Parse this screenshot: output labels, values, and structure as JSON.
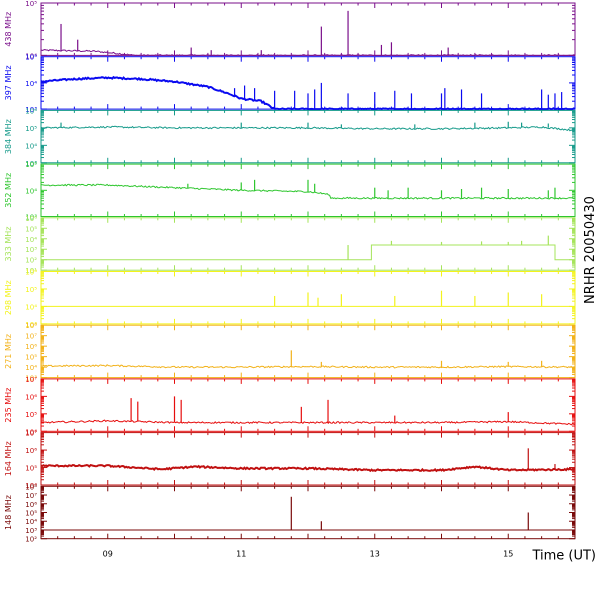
{
  "chart_data": {
    "type": "line",
    "title": "",
    "side_label": "NRHR 20050430",
    "xlabel": "Time (UT)",
    "x_range_hours": [
      8.0,
      16.0
    ],
    "x_ticks": [
      {
        "value": 9,
        "label": "09"
      },
      {
        "value": 11,
        "label": "11"
      },
      {
        "value": 13,
        "label": "13"
      },
      {
        "value": 15,
        "label": "15"
      }
    ],
    "grid": false,
    "log_scale_y": true,
    "panels": [
      {
        "name": "438 MHz",
        "color": "#7a0f8a",
        "ylim_exp": [
          4,
          5
        ],
        "tick_labels": [
          {
            "exp": 4,
            "text": "10⁴"
          },
          {
            "exp": 5,
            "text": "10⁵"
          }
        ],
        "baseline": [
          [
            8.0,
            4.1
          ],
          [
            8.8,
            4.08
          ],
          [
            9.2,
            4.03
          ],
          [
            9.4,
            4.0
          ],
          [
            16.0,
            4.0
          ]
        ],
        "spikes": [
          [
            8.3,
            4.6
          ],
          [
            8.55,
            4.3
          ],
          [
            10.25,
            4.15
          ],
          [
            10.55,
            4.1
          ],
          [
            11.3,
            4.1
          ],
          [
            12.2,
            4.55
          ],
          [
            12.6,
            4.85
          ],
          [
            13.1,
            4.2
          ],
          [
            13.25,
            4.25
          ],
          [
            14.1,
            4.15
          ]
        ]
      },
      {
        "name": "397 MHz",
        "color": "#0a0af0",
        "ylim_exp": [
          3,
          5
        ],
        "tick_labels": [
          {
            "exp": 3,
            "text": "10³"
          },
          {
            "exp": 4,
            "text": "10⁴"
          },
          {
            "exp": 5,
            "text": "10⁵"
          }
        ],
        "baseline": [
          [
            8.0,
            4.05
          ],
          [
            8.5,
            4.15
          ],
          [
            9.0,
            4.2
          ],
          [
            9.5,
            4.15
          ],
          [
            10.0,
            4.05
          ],
          [
            10.5,
            3.85
          ],
          [
            10.8,
            3.6
          ],
          [
            11.0,
            3.4
          ],
          [
            11.3,
            3.3
          ],
          [
            11.5,
            3.0
          ],
          [
            16.0,
            3.0
          ]
        ],
        "spikes": [
          [
            10.9,
            3.8
          ],
          [
            11.05,
            3.9
          ],
          [
            11.2,
            3.8
          ],
          [
            11.5,
            3.7
          ],
          [
            11.8,
            3.7
          ],
          [
            12.0,
            3.6
          ],
          [
            12.1,
            3.75
          ],
          [
            12.2,
            4.0
          ],
          [
            12.6,
            3.6
          ],
          [
            13.0,
            3.65
          ],
          [
            13.3,
            3.7
          ],
          [
            13.55,
            3.6
          ],
          [
            14.0,
            3.6
          ],
          [
            14.05,
            3.8
          ],
          [
            14.3,
            3.75
          ],
          [
            14.6,
            3.6
          ],
          [
            15.5,
            3.75
          ],
          [
            15.6,
            3.55
          ],
          [
            15.7,
            3.6
          ],
          [
            15.8,
            3.65
          ]
        ]
      },
      {
        "name": "384 MHz",
        "color": "#159a8a",
        "ylim_exp": [
          3,
          6
        ],
        "tick_labels": [
          {
            "exp": 3,
            "text": "10³"
          },
          {
            "exp": 4,
            "text": "10⁴"
          },
          {
            "exp": 5,
            "text": "10⁵"
          },
          {
            "exp": 6,
            "text": "10⁶"
          }
        ],
        "baseline": [
          [
            8.0,
            5.0
          ],
          [
            9.0,
            5.05
          ],
          [
            10.0,
            5.0
          ],
          [
            11.0,
            5.0
          ],
          [
            12.0,
            5.0
          ],
          [
            13.0,
            4.95
          ],
          [
            14.0,
            4.95
          ],
          [
            15.0,
            5.0
          ],
          [
            15.5,
            5.05
          ],
          [
            16.0,
            4.85
          ]
        ],
        "spikes": [
          [
            8.3,
            5.3
          ],
          [
            11.0,
            5.3
          ],
          [
            12.0,
            5.3
          ],
          [
            12.5,
            5.2
          ],
          [
            13.6,
            5.2
          ],
          [
            14.5,
            5.3
          ],
          [
            15.0,
            5.35
          ],
          [
            15.2,
            5.3
          ],
          [
            15.6,
            5.25
          ]
        ]
      },
      {
        "name": "352 MHz",
        "color": "#2ec62e",
        "ylim_exp": [
          3,
          5
        ],
        "tick_labels": [
          {
            "exp": 3,
            "text": "10³"
          },
          {
            "exp": 4,
            "text": "10⁴"
          },
          {
            "exp": 5,
            "text": "10⁵"
          }
        ],
        "baseline": [
          [
            8.0,
            4.2
          ],
          [
            9.0,
            4.2
          ],
          [
            10.0,
            4.1
          ],
          [
            11.0,
            4.0
          ],
          [
            12.0,
            3.95
          ],
          [
            12.3,
            3.85
          ],
          [
            12.35,
            3.7
          ],
          [
            16.0,
            3.7
          ]
        ],
        "spikes": [
          [
            10.2,
            4.25
          ],
          [
            11.0,
            4.3
          ],
          [
            11.2,
            4.4
          ],
          [
            12.0,
            4.4
          ],
          [
            12.1,
            4.25
          ],
          [
            13.0,
            4.1
          ],
          [
            13.2,
            4.0
          ],
          [
            13.5,
            4.1
          ],
          [
            14.0,
            4.0
          ],
          [
            14.3,
            4.05
          ],
          [
            14.6,
            4.1
          ],
          [
            15.0,
            4.05
          ],
          [
            15.6,
            4.0
          ],
          [
            15.7,
            4.1
          ]
        ]
      },
      {
        "name": "333 MHz",
        "color": "#a6e45b",
        "ylim_exp": [
          1,
          6
        ],
        "tick_labels": [
          {
            "exp": 1,
            "text": "10¹"
          },
          {
            "exp": 2,
            "text": "10²"
          },
          {
            "exp": 3,
            "text": "10³"
          },
          {
            "exp": 4,
            "text": "10⁴"
          },
          {
            "exp": 5,
            "text": "10⁵"
          },
          {
            "exp": 6,
            "text": "10⁶"
          }
        ],
        "baseline": [
          [
            8.0,
            2.0
          ],
          [
            12.95,
            2.0
          ],
          [
            12.95,
            3.4
          ],
          [
            15.7,
            3.4
          ],
          [
            15.7,
            2.0
          ],
          [
            16.0,
            2.0
          ]
        ],
        "spikes": [
          [
            12.6,
            3.4
          ],
          [
            13.25,
            3.8
          ],
          [
            14.0,
            3.7
          ],
          [
            14.6,
            3.75
          ],
          [
            15.0,
            3.7
          ],
          [
            15.2,
            3.8
          ],
          [
            15.6,
            4.3
          ]
        ]
      },
      {
        "name": "298 MHz",
        "color": "#f3f31c",
        "ylim_exp": [
          3,
          6
        ],
        "tick_labels": [
          {
            "exp": 3,
            "text": "10³"
          },
          {
            "exp": 4,
            "text": "10⁴"
          },
          {
            "exp": 5,
            "text": "10⁵"
          },
          {
            "exp": 6,
            "text": "10⁶"
          }
        ],
        "baseline": [
          [
            8.0,
            4.0
          ],
          [
            16.0,
            4.0
          ]
        ],
        "spikes": [
          [
            11.5,
            4.6
          ],
          [
            12.0,
            4.8
          ],
          [
            12.15,
            4.5
          ],
          [
            12.5,
            4.7
          ],
          [
            13.3,
            4.6
          ],
          [
            14.0,
            4.9
          ],
          [
            14.5,
            4.6
          ],
          [
            15.0,
            4.8
          ],
          [
            15.5,
            4.7
          ]
        ]
      },
      {
        "name": "271 MHz",
        "color": "#f2b21a",
        "ylim_exp": [
          3,
          8
        ],
        "tick_labels": [
          {
            "exp": 3,
            "text": "10³"
          },
          {
            "exp": 4,
            "text": "10⁴"
          },
          {
            "exp": 5,
            "text": "10⁵"
          },
          {
            "exp": 6,
            "text": "10⁶"
          },
          {
            "exp": 7,
            "text": "10⁷"
          },
          {
            "exp": 8,
            "text": "10⁸"
          }
        ],
        "baseline": [
          [
            8.0,
            4.1
          ],
          [
            9.0,
            4.15
          ],
          [
            10.0,
            4.0
          ],
          [
            11.0,
            4.0
          ],
          [
            12.0,
            4.05
          ],
          [
            13.0,
            4.0
          ],
          [
            14.0,
            4.0
          ],
          [
            15.0,
            4.05
          ],
          [
            16.0,
            4.0
          ]
        ],
        "spikes": [
          [
            11.75,
            5.6
          ],
          [
            12.2,
            4.5
          ],
          [
            14.0,
            4.6
          ],
          [
            15.0,
            4.5
          ],
          [
            15.5,
            4.6
          ]
        ]
      },
      {
        "name": "235 MHz",
        "color": "#e60d0d",
        "ylim_exp": [
          4,
          7
        ],
        "tick_labels": [
          {
            "exp": 4,
            "text": "10⁴"
          },
          {
            "exp": 5,
            "text": "10⁵"
          },
          {
            "exp": 6,
            "text": "10⁶"
          },
          {
            "exp": 7,
            "text": "10⁷"
          }
        ],
        "baseline": [
          [
            8.0,
            4.5
          ],
          [
            9.0,
            4.6
          ],
          [
            10.0,
            4.5
          ],
          [
            11.0,
            4.5
          ],
          [
            12.0,
            4.5
          ],
          [
            13.0,
            4.5
          ],
          [
            14.0,
            4.5
          ],
          [
            15.0,
            4.55
          ],
          [
            16.0,
            4.4
          ]
        ],
        "spikes": [
          [
            9.35,
            5.9
          ],
          [
            9.45,
            5.7
          ],
          [
            10.0,
            6.0
          ],
          [
            10.1,
            5.8
          ],
          [
            11.9,
            5.4
          ],
          [
            12.3,
            5.8
          ],
          [
            13.3,
            4.9
          ],
          [
            15.0,
            5.1
          ]
        ]
      },
      {
        "name": "164 MHz",
        "color": "#c01010",
        "ylim_exp": [
          4,
          7
        ],
        "tick_labels": [
          {
            "exp": 4,
            "text": "10⁴"
          },
          {
            "exp": 5,
            "text": "10⁵"
          },
          {
            "exp": 6,
            "text": "10⁶"
          },
          {
            "exp": 7,
            "text": "10⁷"
          }
        ],
        "baseline": [
          [
            8.0,
            5.1
          ],
          [
            9.0,
            5.1
          ],
          [
            9.8,
            4.9
          ],
          [
            10.3,
            5.05
          ],
          [
            11.0,
            4.95
          ],
          [
            12.0,
            4.95
          ],
          [
            13.0,
            4.85
          ],
          [
            14.0,
            4.85
          ],
          [
            14.5,
            5.05
          ],
          [
            15.0,
            4.85
          ],
          [
            16.0,
            4.9
          ]
        ],
        "spikes": [
          [
            15.3,
            6.1
          ],
          [
            15.7,
            5.2
          ]
        ]
      },
      {
        "name": "148 MHz",
        "color": "#7a0a0a",
        "ylim_exp": [
          2,
          8
        ],
        "tick_labels": [
          {
            "exp": 2,
            "text": "10²"
          },
          {
            "exp": 3,
            "text": "10³"
          },
          {
            "exp": 4,
            "text": "10⁴"
          },
          {
            "exp": 5,
            "text": "10⁵"
          },
          {
            "exp": 6,
            "text": "10⁶"
          },
          {
            "exp": 7,
            "text": "10⁷"
          },
          {
            "exp": 8,
            "text": "10⁸"
          }
        ],
        "baseline": [
          [
            8.0,
            3.0
          ],
          [
            16.0,
            3.0
          ]
        ],
        "spikes": [
          [
            11.75,
            6.8
          ],
          [
            12.2,
            4.0
          ],
          [
            15.3,
            5.0
          ]
        ]
      }
    ]
  }
}
